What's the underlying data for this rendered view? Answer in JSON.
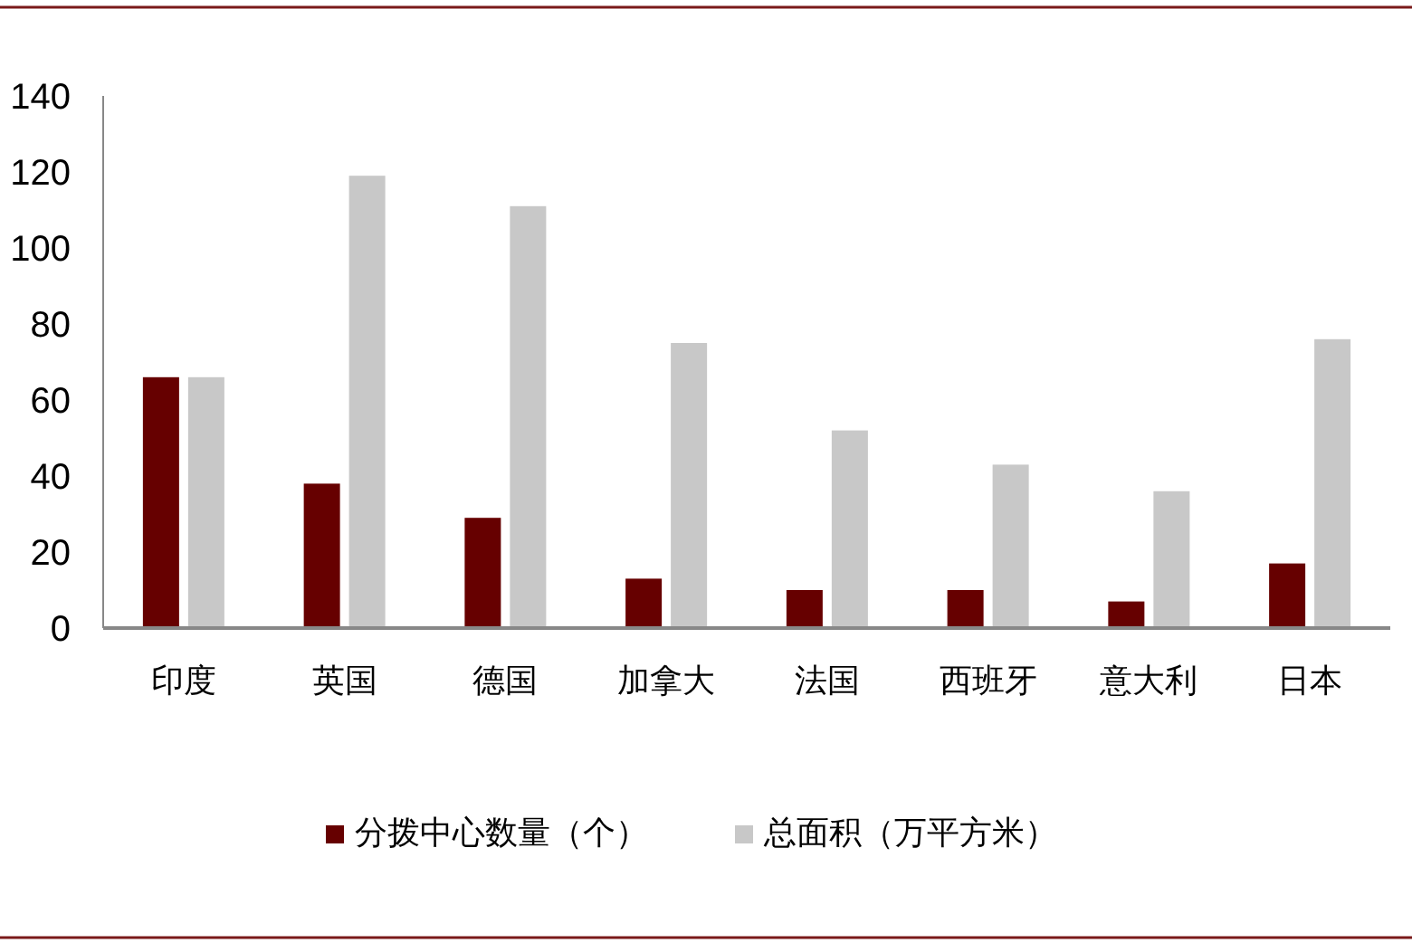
{
  "chart_data": {
    "type": "bar",
    "categories": [
      "印度",
      "英国",
      "德国",
      "加拿大",
      "法国",
      "西班牙",
      "意大利",
      "日本"
    ],
    "series": [
      {
        "name": "分拨中心数量（个）",
        "color": "#660000",
        "values": [
          66,
          38,
          29,
          13,
          10,
          10,
          7,
          17
        ]
      },
      {
        "name": "总面积（万平方米）",
        "color": "#c8c8c8",
        "values": [
          66,
          119,
          111,
          75,
          52,
          43,
          36,
          76
        ]
      }
    ],
    "ylim": [
      0,
      140
    ],
    "yticks": [
      0,
      20,
      40,
      60,
      80,
      100,
      120,
      140
    ],
    "grid": false,
    "legend": "bottom"
  }
}
